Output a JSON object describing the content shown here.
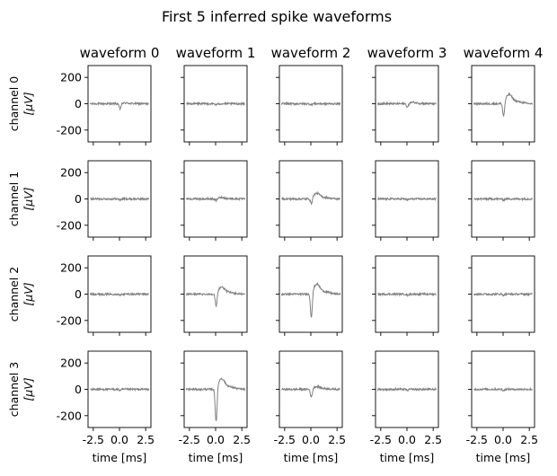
{
  "chart_data": {
    "type": "line",
    "title": "First 5 inferred spike waveforms",
    "column_titles": [
      "waveform 0",
      "waveform 1",
      "waveform 2",
      "waveform 3",
      "waveform 4"
    ],
    "row_labels": [
      {
        "line1": "channel 0",
        "line2": "[μV]"
      },
      {
        "line1": "channel 1",
        "line2": "[μV]"
      },
      {
        "line1": "channel 2",
        "line2": "[μV]"
      },
      {
        "line1": "channel 3",
        "line2": "[μV]"
      }
    ],
    "xlabel": "time [ms]",
    "xlim": [
      -3.0,
      3.0
    ],
    "ylim": [
      -290,
      290
    ],
    "xticks": [
      -2.5,
      0.0,
      2.5
    ],
    "xtick_labels": [
      "-2.5",
      "0.0",
      "2.5"
    ],
    "yticks": [
      -200,
      0,
      200
    ],
    "ytick_labels": [
      "-200",
      "0",
      "200"
    ],
    "line_color": "#808080",
    "grid": false,
    "noise_amplitude_uV": 7,
    "time_range_ms": [
      -2.8,
      2.8
    ],
    "panels": [
      [
        {
          "trough": -40,
          "peak": 5
        },
        {
          "trough": -8,
          "peak": 0
        },
        {
          "trough": -8,
          "peak": 0
        },
        {
          "trough": -8,
          "peak": 0
        }
      ],
      [
        {
          "trough": -8,
          "peak": 0
        },
        {
          "trough": -15,
          "peak": 10
        },
        {
          "trough": -105,
          "peak": 50
        },
        {
          "trough": -260,
          "peak": 75
        }
      ],
      [
        {
          "trough": -8,
          "peak": 0
        },
        {
          "trough": -45,
          "peak": 40
        },
        {
          "trough": -190,
          "peak": 70
        },
        {
          "trough": -65,
          "peak": 20
        }
      ],
      [
        {
          "trough": -30,
          "peak": 10
        },
        {
          "trough": -8,
          "peak": 0
        },
        {
          "trough": -8,
          "peak": 0
        },
        {
          "trough": -8,
          "peak": 0
        }
      ],
      [
        {
          "trough": -110,
          "peak": 65
        },
        {
          "trough": -8,
          "peak": 0
        },
        {
          "trough": -8,
          "peak": 0
        },
        {
          "trough": -8,
          "peak": 0
        }
      ]
    ]
  }
}
